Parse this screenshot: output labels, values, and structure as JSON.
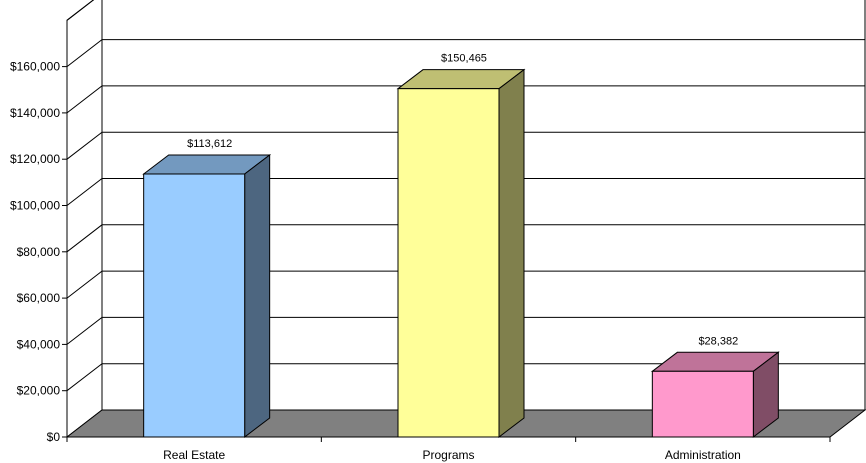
{
  "chart_data": {
    "type": "bar",
    "style": "3d-column",
    "categories": [
      "Real Estate",
      "Programs",
      "Administration"
    ],
    "values": [
      113612,
      150465,
      28382
    ],
    "data_labels": [
      "$113,612",
      "$150,465",
      "$28,382"
    ],
    "y_tick_labels": [
      "$0",
      "$20,000",
      "$40,000",
      "$60,000",
      "$80,000",
      "$100,000",
      "$120,000",
      "$140,000",
      "$160,000"
    ],
    "ylim": [
      0,
      180000
    ],
    "y_tick_step": 20000,
    "title": "",
    "xlabel": "",
    "ylabel": "",
    "grid": true,
    "legend": "none",
    "colors": {
      "bars": [
        {
          "front": "#99ccff",
          "top": "#7399bf",
          "side": "#4d6680"
        },
        {
          "front": "#ffff99",
          "top": "#bfbf73",
          "side": "#80804d"
        },
        {
          "front": "#ff99cc",
          "top": "#bf7399",
          "side": "#804d66"
        }
      ],
      "floor": "#808080",
      "walls": "#ffffff",
      "gridlines": "#000000"
    }
  }
}
